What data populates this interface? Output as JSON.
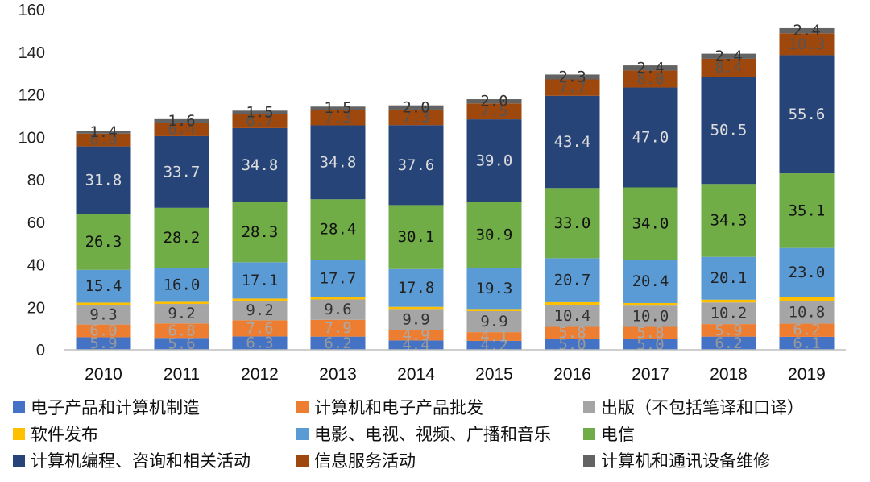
{
  "chart_data": {
    "type": "bar",
    "stacked": true,
    "categories": [
      "2010",
      "2011",
      "2012",
      "2013",
      "2014",
      "2015",
      "2016",
      "2017",
      "2018",
      "2019"
    ],
    "ylim": [
      0,
      160
    ],
    "yticks": [
      0,
      20,
      40,
      60,
      80,
      100,
      120,
      140,
      160
    ],
    "grid": false,
    "legend_position": "bottom",
    "series": [
      {
        "name": "电子产品和计算机制造",
        "color": "#4472c4",
        "values": [
          5.9,
          5.6,
          6.3,
          6.2,
          4.4,
          4.2,
          5.0,
          5.0,
          6.2,
          6.1
        ]
      },
      {
        "name": "计算机和电子产品批发",
        "color": "#ed7d31",
        "values": [
          6.0,
          6.8,
          7.6,
          7.9,
          4.9,
          4.1,
          5.8,
          5.8,
          5.9,
          6.2
        ]
      },
      {
        "name": "出版（不包括笔译和口译）",
        "color": "#a5a5a5",
        "values": [
          9.3,
          9.2,
          9.2,
          9.6,
          9.9,
          9.9,
          10.4,
          10.0,
          10.2,
          10.8
        ]
      },
      {
        "name": "软件发布",
        "color": "#ffc000",
        "values": [
          1.0,
          1.0,
          1.0,
          1.0,
          1.0,
          1.0,
          1.2,
          1.2,
          1.3,
          1.8
        ]
      },
      {
        "name": "电影、电视、视频、广播和音乐",
        "color": "#5b9bd5",
        "values": [
          15.4,
          16.0,
          17.1,
          17.7,
          17.8,
          19.3,
          20.7,
          20.4,
          20.1,
          23.0
        ]
      },
      {
        "name": "电信",
        "color": "#70ad47",
        "values": [
          26.3,
          28.2,
          28.3,
          28.4,
          30.1,
          30.9,
          33.0,
          34.0,
          34.3,
          35.1
        ]
      },
      {
        "name": "计算机编程、咨询和相关活动",
        "color": "#264478",
        "values": [
          31.8,
          33.7,
          34.8,
          34.8,
          37.6,
          39.0,
          43.4,
          47.0,
          50.5,
          55.6
        ]
      },
      {
        "name": "信息服务活动",
        "color": "#9e480e",
        "values": [
          6.0,
          6.4,
          6.7,
          7.3,
          7.3,
          7.5,
          7.7,
          8.0,
          8.4,
          10.3
        ]
      },
      {
        "name": "计算机和通讯设备维修",
        "color": "#636363",
        "values": [
          1.4,
          1.6,
          1.5,
          1.5,
          2.0,
          2.0,
          2.3,
          2.4,
          2.4,
          2.4
        ]
      }
    ],
    "data_labels": [
      [
        "5.9",
        "5.6",
        "6.3",
        "6.2",
        "4.4",
        "4.2",
        "5.0",
        "5.0",
        "6.2",
        "6.1"
      ],
      [
        "6.0",
        "6.8",
        "7.6",
        "7.9",
        "4.9",
        "4.1",
        "5.8",
        "5.8",
        "5.9",
        "6.2"
      ],
      [
        "9.3",
        "9.2",
        "9.2",
        "9.6",
        "9.9",
        "9.9",
        "10.4",
        "10.0",
        "10.2",
        "10.8"
      ],
      null,
      [
        "15.4",
        "16.0",
        "17.1",
        "17.7",
        "17.8",
        "19.3",
        "20.7",
        "20.4",
        "20.1",
        "23.0"
      ],
      [
        "26.3",
        "28.2",
        "28.3",
        "28.4",
        "30.1",
        "30.9",
        "33.0",
        "34.0",
        "34.3",
        "35.1"
      ],
      [
        "31.8",
        "33.7",
        "34.8",
        "34.8",
        "37.6",
        "39.0",
        "43.4",
        "47.0",
        "50.5",
        "55.6"
      ],
      [
        "6.0",
        "6.4",
        "6.7",
        "7.3",
        "7.3",
        "7.5",
        "7.7",
        "8.0",
        "8.4",
        "10.3"
      ],
      [
        "1.4",
        "1.6",
        "1.5",
        "1.5",
        "2.0",
        "2.0",
        "2.3",
        "2.4",
        "2.4",
        "2.4"
      ]
    ],
    "label_colors": [
      "#999999",
      "#aaaaaa",
      "#333333",
      null,
      "#222222",
      "#111111",
      "#dddddd",
      "#555555",
      "#333333"
    ]
  }
}
